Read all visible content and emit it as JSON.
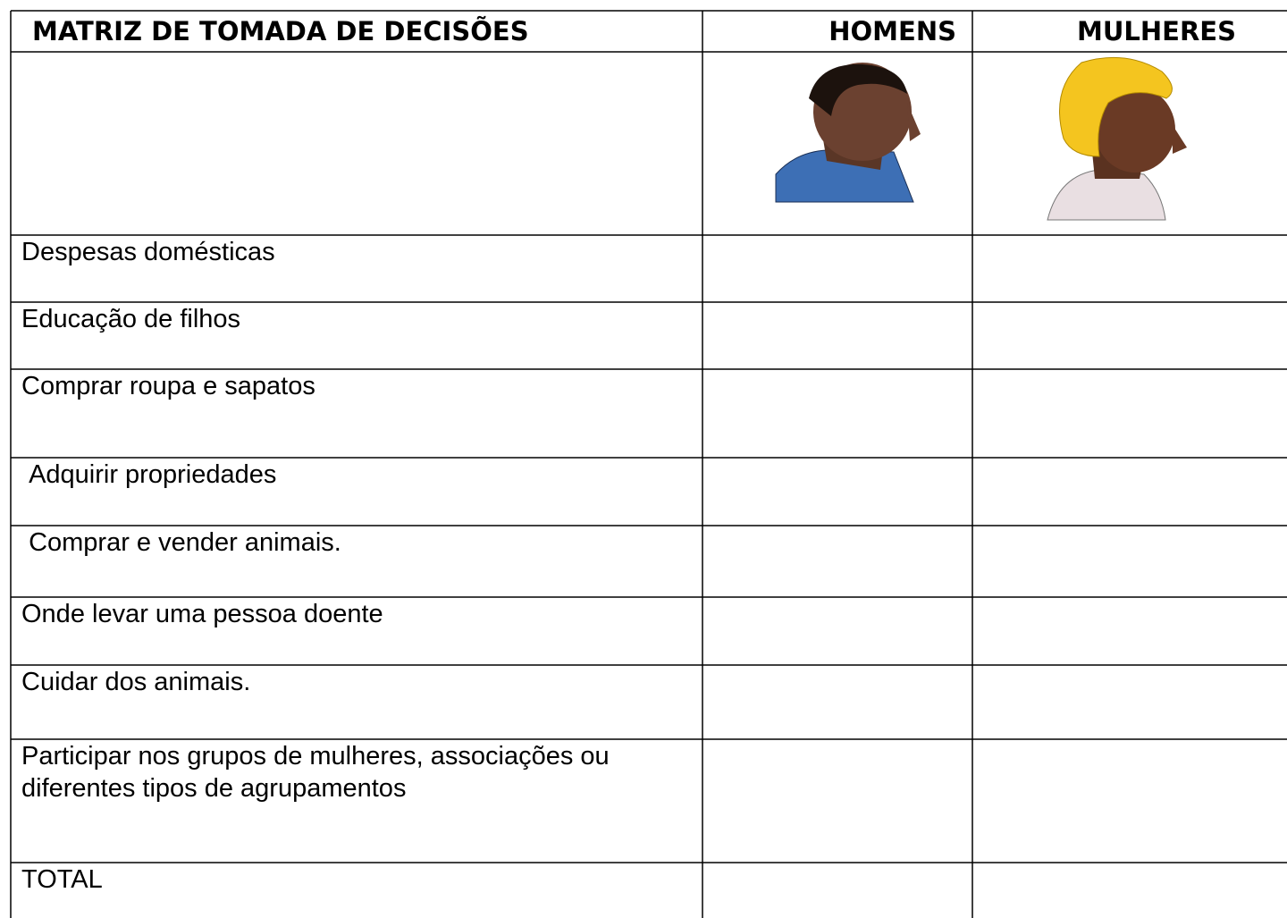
{
  "header": {
    "title": "MATRIZ DE TOMADA DE DECISÕES",
    "columns": [
      "HOMENS",
      "MULHERES"
    ]
  },
  "table": {
    "rows": [
      "Despesas domésticas",
      "Educação de filhos",
      "Comprar roupa e sapatos",
      " Adquirir propriedades",
      " Comprar e vender animais.",
      "Onde levar uma pessoa doente",
      "Cuidar dos animais.",
      "Participar nos grupos de mulheres, associações ou diferentes tipos de agrupamentos",
      "TOTAL"
    ]
  }
}
